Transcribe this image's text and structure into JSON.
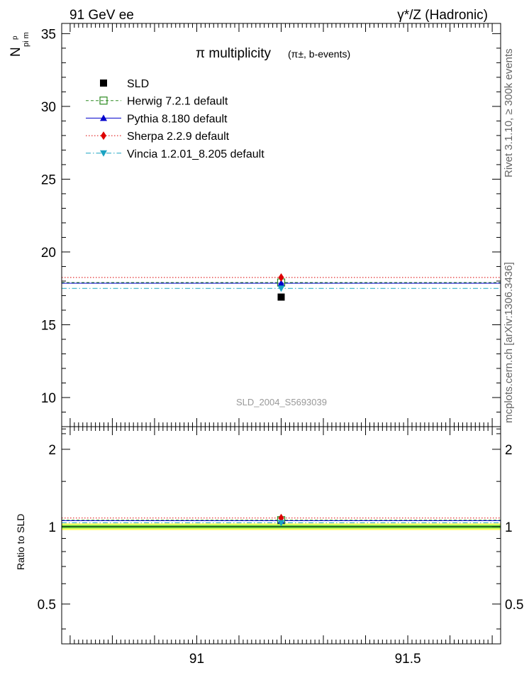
{
  "header": {
    "left": "91 GeV ee",
    "right": "γ*/Z (Hadronic)"
  },
  "side_labels": {
    "rivet": "Rivet 3.1.10, ≥ 300k events",
    "mcplots": "mcplots.cern.ch [arXiv:1306.3436]"
  },
  "main_title": {
    "main": "π multiplicity",
    "sub": "(π±, b-events)"
  },
  "watermark": "SLD_2004_S5693039",
  "ylabel_main": "N",
  "ylabel_main_sub": "pi m",
  "ylabel_main_sup": "p",
  "ylabel_ratio": "Ratio to SLD",
  "colors": {
    "data": "#000000",
    "herwig": "#2e8b22",
    "pythia": "#0000cc",
    "sherpa": "#dd0000",
    "vincia": "#1aa3c2",
    "band_outer": "#ffff66",
    "band_inner": "#66dd44"
  },
  "chart_data": [
    {
      "type": "scatter",
      "panel": "main",
      "x_range": [
        90.68,
        91.72
      ],
      "y_range": [
        8.0,
        35.7
      ],
      "y_ticks": [
        10,
        15,
        20,
        25,
        30,
        35
      ],
      "y_tick_labels": [
        "10",
        "15",
        "20",
        "25",
        "30",
        "35"
      ],
      "series": [
        {
          "name": "SLD",
          "key": "data",
          "x": [
            91.2
          ],
          "y": [
            16.9
          ],
          "style": "marker"
        },
        {
          "name": "Herwig 7.2.1 default",
          "key": "herwig",
          "x": [
            91.2
          ],
          "y": [
            17.9
          ],
          "style": "dashed"
        },
        {
          "name": "Pythia 8.180 default",
          "key": "pythia",
          "x": [
            91.2
          ],
          "y": [
            17.85
          ],
          "style": "solid"
        },
        {
          "name": "Sherpa 2.2.9 default",
          "key": "sherpa",
          "x": [
            91.2
          ],
          "y": [
            18.25
          ],
          "style": "dotted"
        },
        {
          "name": "Vincia 1.2.01_8.205 default",
          "key": "vincia",
          "x": [
            91.2
          ],
          "y": [
            17.5
          ],
          "style": "dashdot"
        }
      ]
    },
    {
      "type": "scatter",
      "panel": "ratio",
      "x_range": [
        90.68,
        91.72
      ],
      "y_range": [
        0.35,
        2.45
      ],
      "y_ticks": [
        0.5,
        1,
        2
      ],
      "y_tick_labels": [
        "0.5",
        "1",
        "2"
      ],
      "x_ticks": [
        91,
        91.5
      ],
      "x_tick_labels": [
        "91",
        "91.5"
      ],
      "band": {
        "outer": [
          0.97,
          1.03
        ],
        "inner": [
          0.985,
          1.015
        ]
      },
      "series": [
        {
          "name": "Herwig 7.2.1 default",
          "key": "herwig",
          "y": [
            1.06
          ]
        },
        {
          "name": "Pythia 8.180 default",
          "key": "pythia",
          "y": [
            1.055
          ]
        },
        {
          "name": "Sherpa 2.2.9 default",
          "key": "sherpa",
          "y": [
            1.08
          ]
        },
        {
          "name": "Vincia 1.2.01_8.205 default",
          "key": "vincia",
          "y": [
            1.035
          ]
        }
      ]
    }
  ]
}
